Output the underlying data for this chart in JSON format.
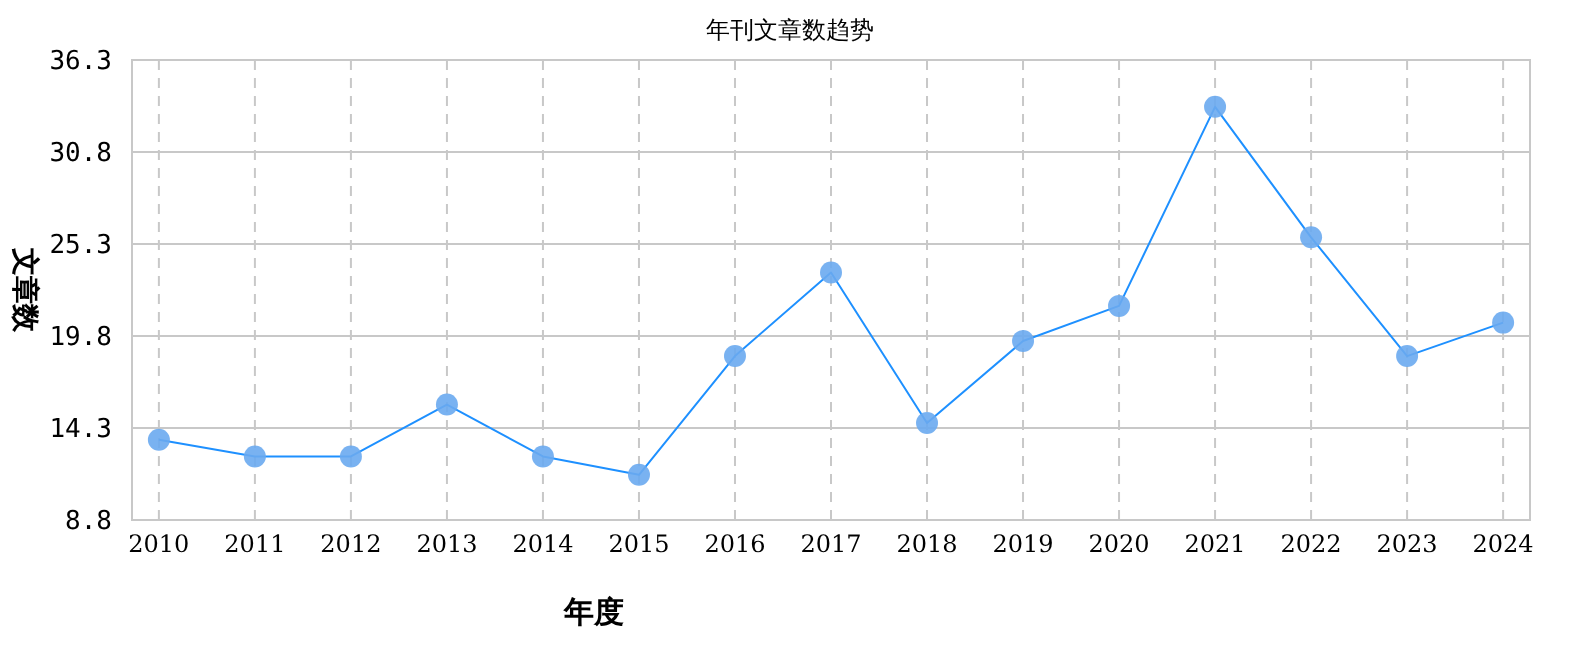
{
  "chart_data": {
    "type": "line",
    "title": "年刊文章数趋势",
    "xlabel": "年度",
    "ylabel": "文章数",
    "categories": [
      "2010",
      "2011",
      "2012",
      "2013",
      "2014",
      "2015",
      "2016",
      "2017",
      "2018",
      "2019",
      "2020",
      "2021",
      "2022",
      "2023",
      "2024"
    ],
    "series": [
      {
        "color": "#1e90ff",
        "values": [
          13.6,
          12.6,
          12.6,
          15.7,
          12.6,
          11.5,
          18.6,
          23.6,
          14.6,
          19.5,
          21.6,
          33.5,
          25.7,
          18.6,
          20.6
        ]
      }
    ],
    "ylim": [
      8.8,
      36.3
    ],
    "yticks": [
      8.8,
      14.3,
      19.8,
      25.3,
      30.8,
      36.3
    ],
    "grid": true,
    "marker": "circle"
  }
}
